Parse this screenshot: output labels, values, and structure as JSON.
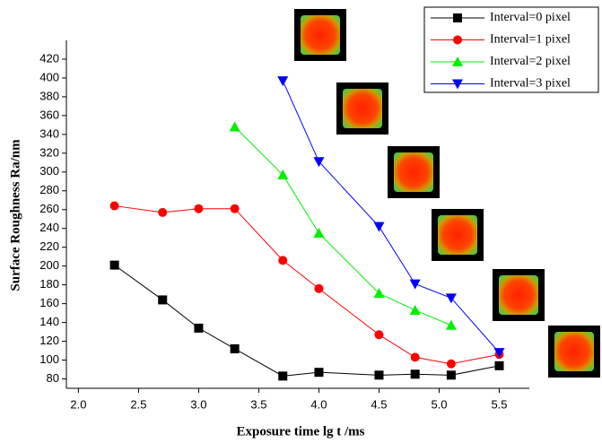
{
  "chart_data": {
    "type": "line",
    "x_label": "Exposure time lg t /ms",
    "y_label": "Surface Roughness Ra/nm",
    "xlim": [
      1.9,
      5.75
    ],
    "ylim": [
      70,
      440
    ],
    "xticks": [
      {
        "value": 2,
        "label": "2.0"
      },
      2.5,
      {
        "value": 3,
        "label": "3.0"
      },
      3.5,
      {
        "value": 4,
        "label": "4.0"
      },
      4.5,
      {
        "value": 5,
        "label": "5.0"
      },
      5.5
    ],
    "yticks": [
      80,
      100,
      120,
      140,
      160,
      180,
      200,
      220,
      240,
      260,
      280,
      300,
      320,
      340,
      360,
      380,
      400,
      420
    ],
    "legend": "top-right",
    "series": [
      {
        "name": "Interval=0 pixel",
        "color": "#000000",
        "marker": "square",
        "x": [
          2.3,
          2.7,
          3.0,
          3.3,
          3.7,
          4.0,
          4.5,
          4.8,
          5.1,
          5.5
        ],
        "values": [
          201,
          164,
          134,
          112,
          83,
          87,
          84,
          85,
          84,
          94
        ]
      },
      {
        "name": "Interval=1 pixel",
        "color": "#ff0000",
        "marker": "circle",
        "x": [
          2.3,
          2.7,
          3.0,
          3.3,
          3.7,
          4.0,
          4.5,
          4.8,
          5.1,
          5.5
        ],
        "values": [
          264,
          257,
          261,
          261,
          206,
          176,
          127,
          103,
          96,
          106
        ]
      },
      {
        "name": "Interval=2 pixel",
        "color": "#00ee00",
        "marker": "triangle-up",
        "x": [
          3.3,
          3.7,
          4.0,
          4.5,
          4.8,
          5.1
        ],
        "values": [
          348,
          297,
          235,
          171,
          153,
          137
        ]
      },
      {
        "name": "Interval=3 pixel",
        "color": "#0000ff",
        "marker": "triangle-down",
        "x": [
          3.7,
          4.0,
          4.5,
          4.8,
          5.1,
          5.5
        ],
        "values": [
          397,
          311,
          242,
          181,
          166,
          108
        ]
      }
    ]
  }
}
